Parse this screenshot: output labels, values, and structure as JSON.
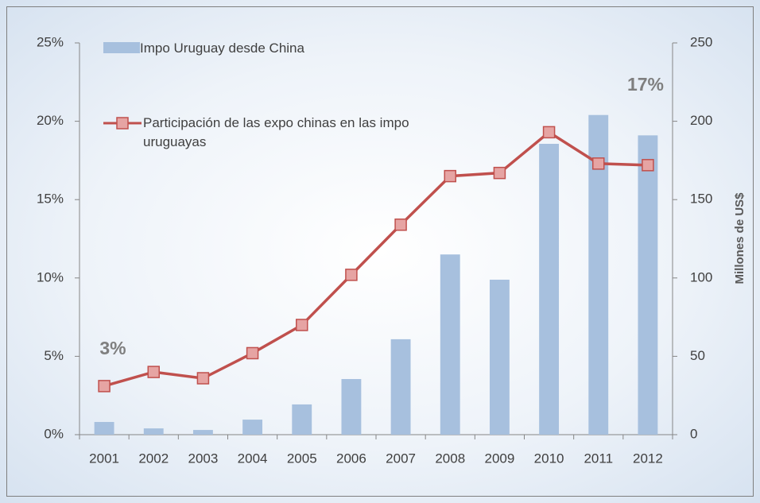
{
  "chart_data": {
    "type": "bar+line",
    "y2label": "Millones de US$",
    "categories": [
      "2001",
      "2002",
      "2003",
      "2004",
      "2005",
      "2006",
      "2007",
      "2008",
      "2009",
      "2010",
      "2011",
      "2012"
    ],
    "series": [
      {
        "name": "Impo Uruguay desde China",
        "type": "bar",
        "axis": "y2",
        "color": "#a7c0de",
        "values": [
          8.1,
          4,
          3,
          9.6,
          19.3,
          35.5,
          60.9,
          115,
          98.9,
          185.6,
          204,
          191
        ]
      },
      {
        "name": "Participación de las expo chinas en las impo uruguayas",
        "type": "line",
        "axis": "y",
        "color": "#c0504d",
        "marker_color": "#e6a4a3",
        "values": [
          3.1,
          4.0,
          3.6,
          5.2,
          7.0,
          10.2,
          13.4,
          16.5,
          16.7,
          19.3,
          17.3,
          17.2
        ]
      }
    ],
    "ylim": [
      0,
      25
    ],
    "yticks": [
      {
        "value": 0,
        "label": "0%"
      },
      {
        "value": 5,
        "label": "5%"
      },
      {
        "value": 10,
        "label": "10%"
      },
      {
        "value": 15,
        "label": "15%"
      },
      {
        "value": 20,
        "label": "20%"
      },
      {
        "value": 25,
        "label": "25%"
      }
    ],
    "y2lim": [
      0,
      250
    ],
    "y2ticks": [
      0,
      50,
      100,
      150,
      200,
      250
    ],
    "annotations": [
      {
        "text": "3%"
      },
      {
        "text": "17%"
      }
    ],
    "grid": false
  }
}
